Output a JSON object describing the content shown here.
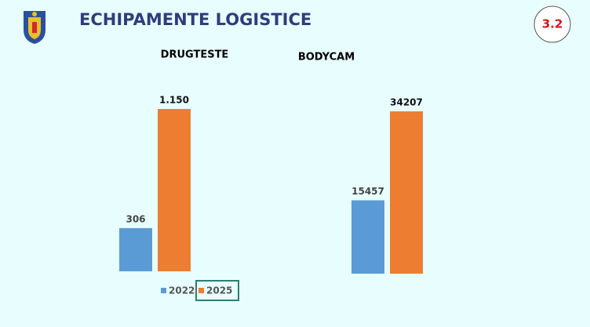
{
  "header": {
    "title": "ECHIPAMENTE LOGISTICE",
    "badge": "3.2"
  },
  "legend": {
    "names": [
      "2022",
      "2025"
    ],
    "colors": [
      "#5b9bd5",
      "#ed7d31"
    ]
  },
  "chart_data": [
    {
      "type": "bar",
      "title": "DRUGTESTE",
      "values": [
        306,
        1150
      ],
      "value_labels": [
        "306",
        "1.150"
      ]
    },
    {
      "type": "bar",
      "title": "BODYCAM",
      "values": [
        15457,
        34207
      ]
    }
  ]
}
